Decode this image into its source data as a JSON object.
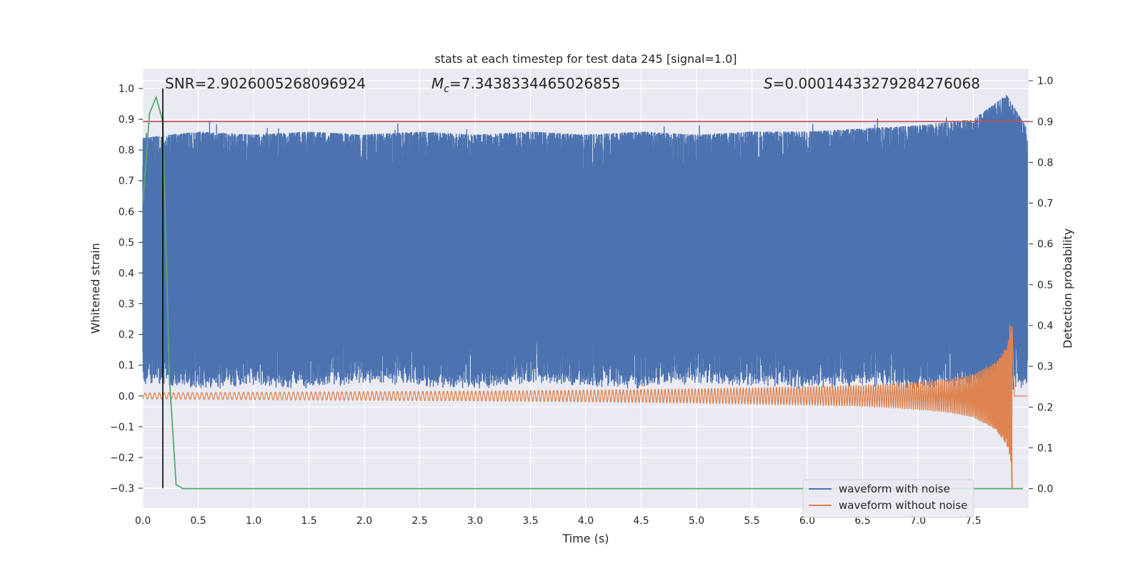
{
  "chart_data": {
    "type": "line",
    "title": "stats at each timestep for test data 245 [signal=1.0]",
    "xlabel": "Time (s)",
    "ylabel": "Whitened strain",
    "ylabel_right": "Detection probability",
    "xlim": [
      0.0,
      8.0
    ],
    "ylim": [
      -0.365,
      1.065
    ],
    "ylim_right": [
      -0.048,
      1.03
    ],
    "xticks": [
      0.0,
      0.5,
      1.0,
      1.5,
      2.0,
      2.5,
      3.0,
      3.5,
      4.0,
      4.5,
      5.0,
      5.5,
      6.0,
      6.5,
      7.0,
      7.5
    ],
    "xtick_labels": [
      "0.0",
      "0.5",
      "1.0",
      "1.5",
      "2.0",
      "2.5",
      "3.0",
      "3.5",
      "4.0",
      "4.5",
      "5.0",
      "5.5",
      "6.0",
      "6.5",
      "7.0",
      "7.5"
    ],
    "yticks": [
      1.0,
      0.9,
      0.8,
      0.7,
      0.6,
      0.5,
      0.4,
      0.3,
      0.2,
      0.1,
      0.0,
      -0.1,
      -0.2,
      -0.3
    ],
    "ytick_labels": [
      "1.0",
      "0.9",
      "0.8",
      "0.7",
      "0.6",
      "0.5",
      "0.4",
      "0.3",
      "0.2",
      "0.1",
      "0.0",
      "−0.1",
      "−0.2",
      "−0.3"
    ],
    "yticks_right": [
      1.0,
      0.9,
      0.8,
      0.7,
      0.6,
      0.5,
      0.4,
      0.3,
      0.2,
      0.1,
      0.0
    ],
    "ytick_labels_right": [
      "1.0",
      "0.9",
      "0.8",
      "0.7",
      "0.6",
      "0.5",
      "0.4",
      "0.3",
      "0.2",
      "0.1",
      "0.0"
    ],
    "annotations": {
      "snr": "SNR=2.9026005268096924",
      "mc_symbol": "M",
      "mc_sub": "c",
      "mc_value": "=7.3438334465026855",
      "s_symbol": "S",
      "s_value": "=0.00014433279284276068"
    },
    "legend": {
      "placement": "lower-right",
      "entries": [
        "waveform with noise",
        "waveform without noise"
      ]
    },
    "series": [
      {
        "name": "waveform with noise",
        "color": "#4c72b0",
        "axis": "left",
        "description": "dense noisy strain, upper envelope ~0.82-0.88 with spikes to 1.0 near 7.8 s, lower envelope ~0.0-0.2",
        "envelope_x": [
          0.0,
          0.5,
          1.0,
          1.5,
          2.0,
          2.5,
          3.0,
          3.5,
          4.0,
          4.5,
          5.0,
          5.5,
          6.0,
          6.5,
          7.0,
          7.5,
          7.8,
          8.0
        ],
        "envelope_high": [
          0.84,
          0.86,
          0.85,
          0.86,
          0.85,
          0.86,
          0.85,
          0.86,
          0.85,
          0.86,
          0.85,
          0.86,
          0.86,
          0.87,
          0.88,
          0.9,
          0.98,
          0.86
        ],
        "envelope_low": [
          0.08,
          0.06,
          0.07,
          0.06,
          0.08,
          0.07,
          0.06,
          0.08,
          0.07,
          0.06,
          0.08,
          0.07,
          0.06,
          0.07,
          0.06,
          0.07,
          0.05,
          0.07
        ]
      },
      {
        "name": "waveform without noise",
        "color": "#dd8452",
        "axis": "left",
        "description": "chirp waveform with growing amplitude, merger near 7.85 s",
        "merger_time": 7.85,
        "amplitude_x": [
          0.0,
          1.0,
          2.0,
          3.0,
          4.0,
          5.0,
          6.0,
          6.5,
          7.0,
          7.3,
          7.5,
          7.7,
          7.8,
          7.85,
          7.87,
          8.0
        ],
        "amplitude": [
          0.01,
          0.012,
          0.014,
          0.016,
          0.019,
          0.023,
          0.029,
          0.034,
          0.044,
          0.055,
          0.07,
          0.11,
          0.16,
          0.23,
          0.0,
          0.0
        ]
      },
      {
        "name": "detection probability",
        "color": "#55a868",
        "axis": "right",
        "x": [
          0.0,
          0.06,
          0.12,
          0.18,
          0.24,
          0.3,
          0.36,
          0.4,
          7.95
        ],
        "values": [
          0.7,
          0.92,
          0.96,
          0.9,
          0.27,
          0.01,
          0.0,
          0.0,
          0.0
        ]
      },
      {
        "name": "threshold",
        "color": "#c44e52",
        "axis": "right",
        "x": [
          0.0,
          8.0
        ],
        "values": [
          0.9,
          0.9
        ]
      },
      {
        "name": "detection marker",
        "color": "#000000",
        "axis": "left",
        "x": [
          0.18,
          0.18
        ],
        "values": [
          -0.3,
          1.0
        ]
      }
    ]
  }
}
